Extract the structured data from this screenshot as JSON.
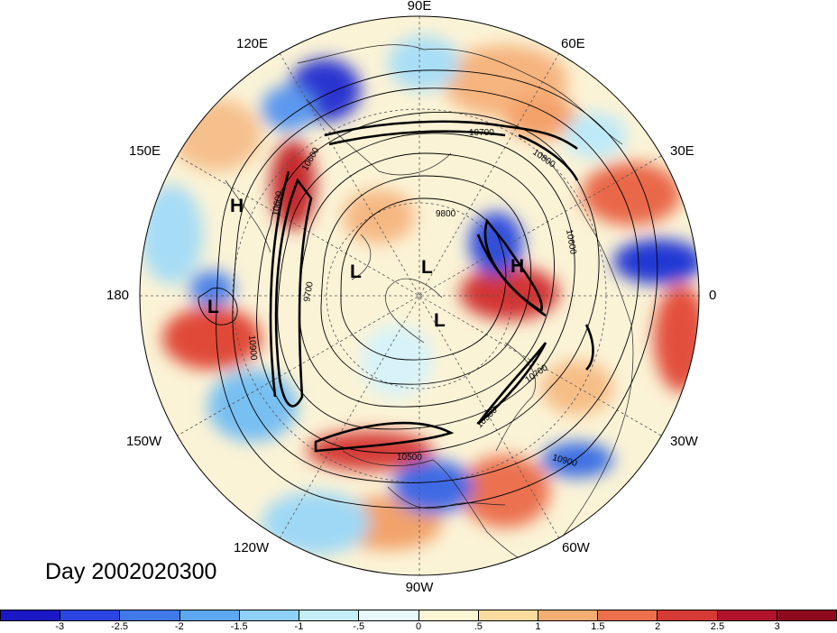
{
  "title": "Day 2002020300",
  "longitude_labels": {
    "e90": "90E",
    "e60": "60E",
    "e30": "30E",
    "zero": "0",
    "w30": "30W",
    "w60": "60W",
    "w90": "90W",
    "w120": "120W",
    "w150": "150W",
    "d180": "180",
    "e150": "150E",
    "e120": "120E"
  },
  "pressure_centers": [
    {
      "kind": "H",
      "label": "H"
    },
    {
      "kind": "L",
      "label": "L"
    },
    {
      "kind": "L",
      "label": "L"
    },
    {
      "kind": "L",
      "label": "L"
    },
    {
      "kind": "H",
      "label": "H"
    },
    {
      "kind": "L",
      "label": "L"
    }
  ],
  "contour_labels": [
    "9800",
    "9700",
    "10600",
    "10700",
    "10800",
    "10900",
    "10600",
    "10500",
    "10700",
    "10900",
    "10500",
    "10600"
  ],
  "colorbar": {
    "ticks": [
      "-3",
      "-2.5",
      "-2",
      "-1.5",
      "-1",
      "-.5",
      "0",
      ".5",
      "1",
      "1.5",
      "2",
      "2.5",
      "3"
    ],
    "colors": [
      "#1a17c4",
      "#2a45e0",
      "#3f79ea",
      "#5ea8f3",
      "#8fd0f6",
      "#c5eef8",
      "#e7f9fa",
      "#fcf6d4",
      "#f9dc9e",
      "#f4ad73",
      "#ec704c",
      "#d63a35",
      "#b0132c",
      "#8e0a1f"
    ]
  }
}
